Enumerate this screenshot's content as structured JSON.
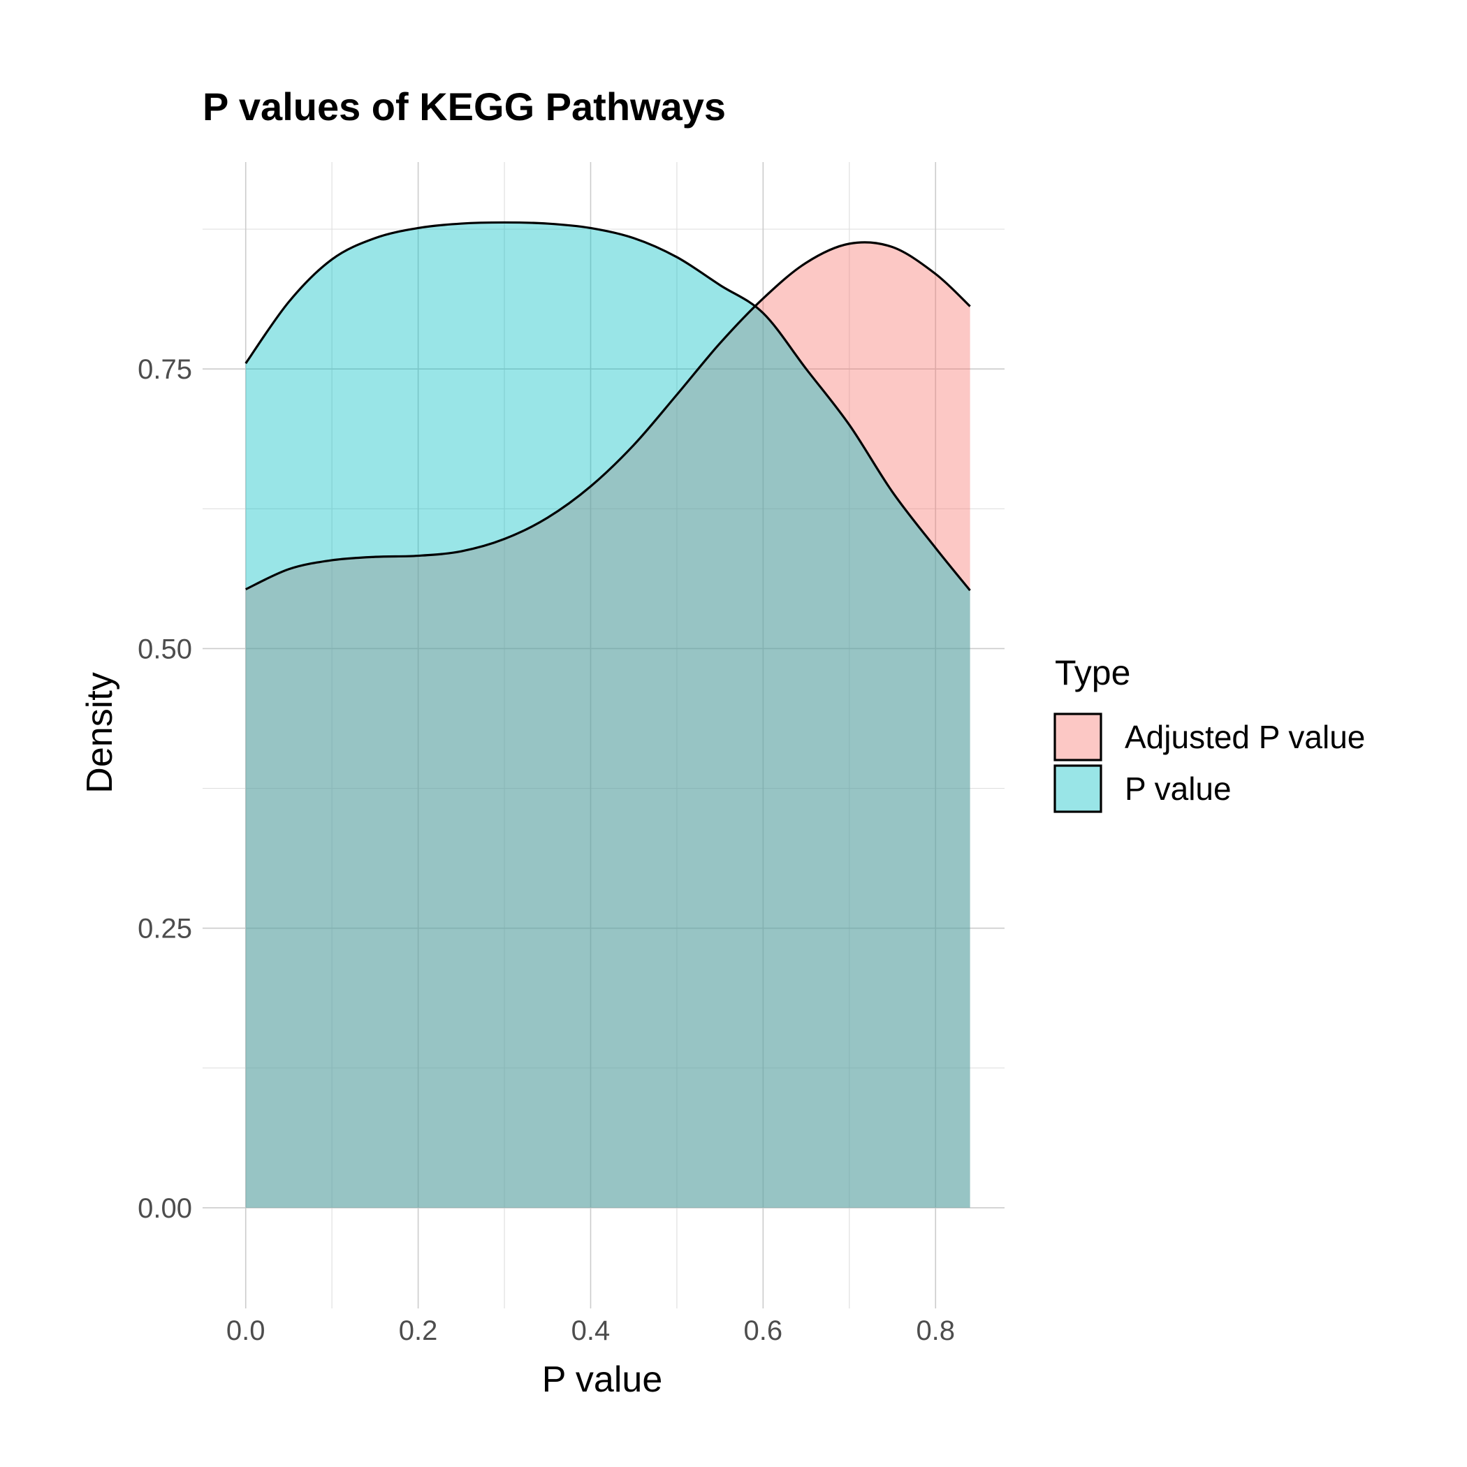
{
  "chart_data": {
    "type": "area",
    "subtype": "density",
    "title": "P values of KEGG Pathways",
    "xlabel": "P value",
    "ylabel": "Density",
    "xlim": [
      -0.05,
      0.88
    ],
    "ylim": [
      -0.09,
      0.935
    ],
    "x_ticks": [
      0.0,
      0.2,
      0.4,
      0.6,
      0.8
    ],
    "x_tick_labels": [
      "0.0",
      "0.2",
      "0.4",
      "0.6",
      "0.8"
    ],
    "y_ticks": [
      0.0,
      0.25,
      0.5,
      0.75
    ],
    "y_tick_labels": [
      "0.00",
      "0.25",
      "0.50",
      "0.75"
    ],
    "grid": true,
    "legend_position": "right",
    "legend_title": "Type",
    "series": [
      {
        "name": "Adjusted P value",
        "color": "#F8766D",
        "x": [
          0.0,
          0.05,
          0.1,
          0.15,
          0.2,
          0.25,
          0.3,
          0.35,
          0.4,
          0.45,
          0.5,
          0.55,
          0.6,
          0.65,
          0.7,
          0.75,
          0.8,
          0.84
        ],
        "values": [
          0.553,
          0.571,
          0.579,
          0.582,
          0.583,
          0.587,
          0.598,
          0.617,
          0.645,
          0.682,
          0.727,
          0.773,
          0.813,
          0.845,
          0.862,
          0.859,
          0.835,
          0.806
        ]
      },
      {
        "name": "P value",
        "color": "#00BFC4",
        "x": [
          0.0,
          0.05,
          0.1,
          0.15,
          0.2,
          0.25,
          0.3,
          0.35,
          0.4,
          0.45,
          0.5,
          0.55,
          0.6,
          0.65,
          0.7,
          0.75,
          0.8,
          0.84
        ],
        "values": [
          0.755,
          0.81,
          0.848,
          0.867,
          0.876,
          0.88,
          0.881,
          0.88,
          0.876,
          0.867,
          0.85,
          0.825,
          0.8,
          0.75,
          0.7,
          0.64,
          0.59,
          0.552
        ]
      }
    ]
  }
}
